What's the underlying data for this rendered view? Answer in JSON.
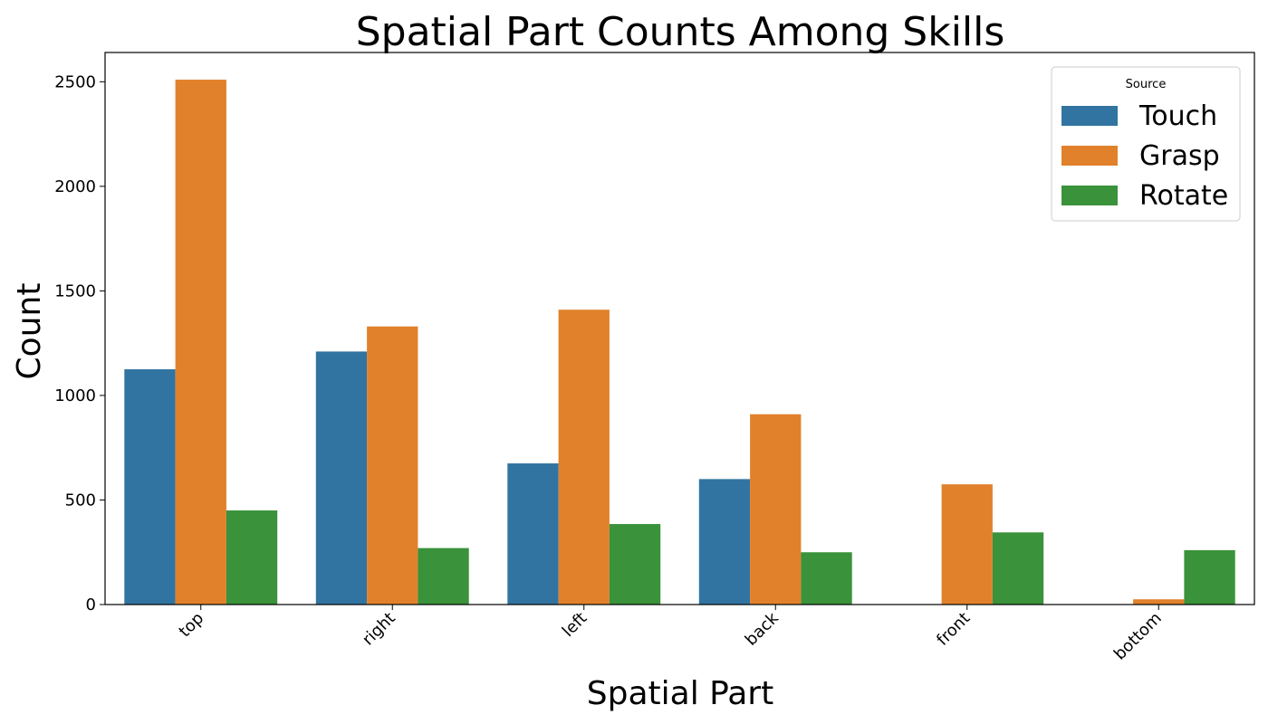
{
  "chart_data": {
    "type": "bar",
    "title": "Spatial Part Counts Among Skills",
    "xlabel": "Spatial Part",
    "ylabel": "Count",
    "categories": [
      "top",
      "right",
      "left",
      "back",
      "front",
      "bottom"
    ],
    "series": [
      {
        "name": "Touch",
        "color": "#3274a1",
        "values": [
          1125,
          1210,
          675,
          600,
          0,
          0
        ]
      },
      {
        "name": "Grasp",
        "color": "#e1812c",
        "values": [
          2510,
          1330,
          1410,
          910,
          575,
          25
        ]
      },
      {
        "name": "Rotate",
        "color": "#3a923a",
        "values": [
          450,
          270,
          385,
          250,
          345,
          260
        ]
      }
    ],
    "ylim": [
      0,
      2640
    ],
    "yticks": [
      0,
      500,
      1000,
      1500,
      2000,
      2500
    ],
    "legend": {
      "title": "Source",
      "placement": "top-right"
    },
    "grid": false
  }
}
